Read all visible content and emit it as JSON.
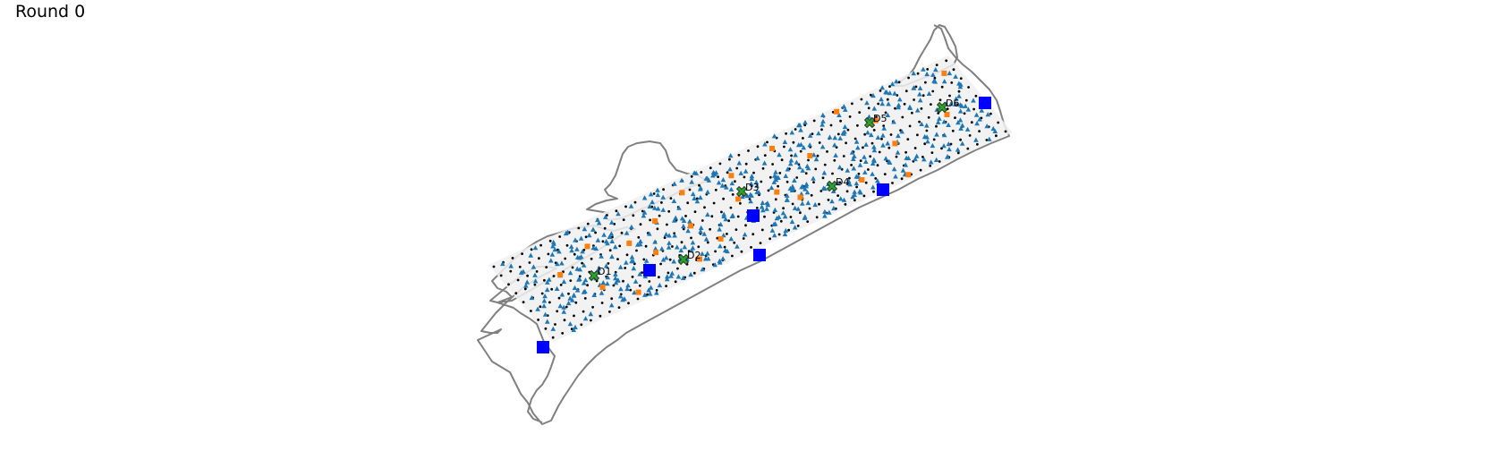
{
  "title": "Round 0",
  "colors": {
    "coastline": "#808080",
    "region_fill": "#f0f0f0",
    "grid_dot": "#000000",
    "triangle": "#1f77b4",
    "orange_square": "#ff7f0e",
    "blue_square": "#0000ff",
    "depot_x": "#2ca02c"
  },
  "depots": [
    {
      "label": "D1"
    },
    {
      "label": "D2"
    },
    {
      "label": "D3"
    },
    {
      "label": "D4"
    },
    {
      "label": "D5"
    },
    {
      "label": "D6"
    }
  ]
}
